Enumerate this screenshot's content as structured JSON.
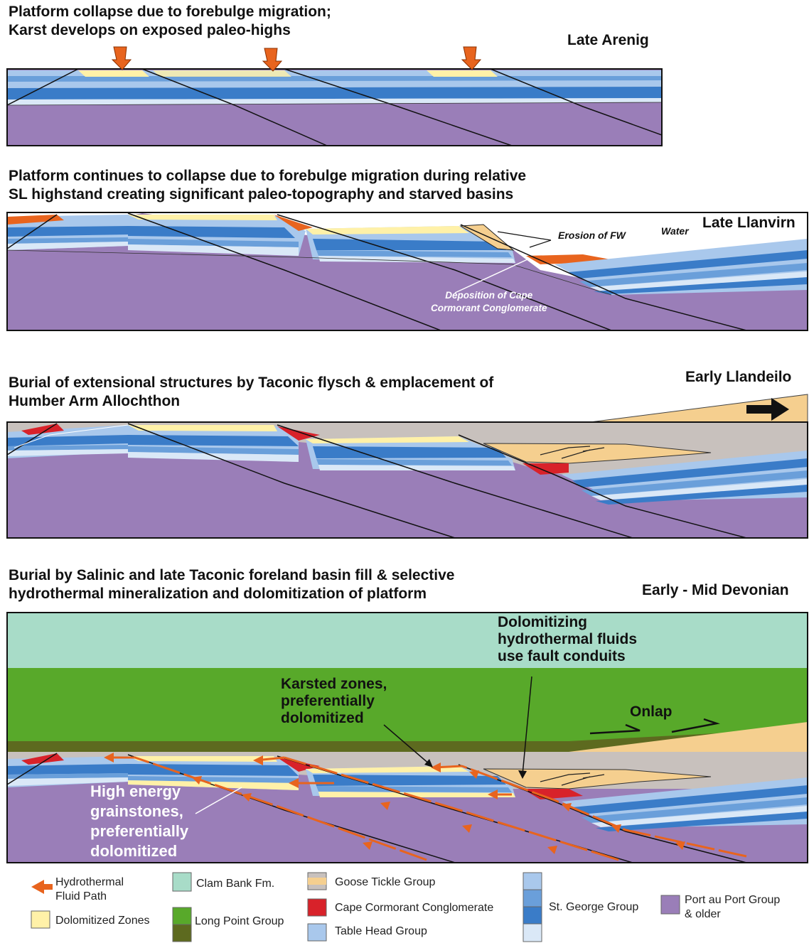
{
  "panels": [
    {
      "title": "Platform collapse due to forebulge migration;\nKarst develops on exposed paleo-highs",
      "era": "Late Arenig"
    },
    {
      "title": "Platform continues to collapse due to forebulge migration during relative\nSL highstand creating significant paleo-topography and starved basins",
      "era": "Late Llanvirn",
      "annotations": {
        "erosion": "Erosion of FW",
        "water": "Water",
        "deposition": "Deposition of Cape\nCormorant Conglomerate"
      }
    },
    {
      "title": "Burial of extensional structures by Taconic flysch & emplacement of\nHumber Arm Allochthon",
      "era": "Early Llandeilo"
    },
    {
      "title": "Burial by Salinic and late Taconic foreland basin fill & selective\nhydrothermal mineralization and dolomitization of platform",
      "era": "Early - Mid Devonian",
      "annotations": {
        "fluids": "Dolomitizing\nhydrothermal fluids\nuse fault conduits",
        "karst": "Karsted zones,\npreferentially\ndolomitized",
        "onlap": "Onlap",
        "grainstones": "High energy\ngrainstones,\npreferentially\ndolomitized"
      }
    }
  ],
  "legend": {
    "fluid_path": "Hydrothermal\nFluid Path",
    "dolomitized": "Dolomitized Zones",
    "clam_bank": "Clam Bank Fm.",
    "long_point": "Long Point Group",
    "goose_tickle": "Goose Tickle Group",
    "cape_cormorant": "Cape Cormorant Conglomerate",
    "table_head": "Table Head Group",
    "st_george": "St. George Group",
    "port_au_port": "Port au Port Group\n& older"
  },
  "colors": {
    "purple": "#9a7eb8",
    "blue_dark": "#3a7cc8",
    "blue_mid": "#6a9fda",
    "blue_light": "#a9c8ec",
    "blue_pale": "#dae8f7",
    "yellow": "#fff1a8",
    "orange": "#e8641e",
    "red": "#d8222a",
    "flysch": "#f5cf8f",
    "goose": "#c8c1bd",
    "clam": "#a8dcc8",
    "green": "#58a92a",
    "green_dark": "#5d6a1f"
  }
}
